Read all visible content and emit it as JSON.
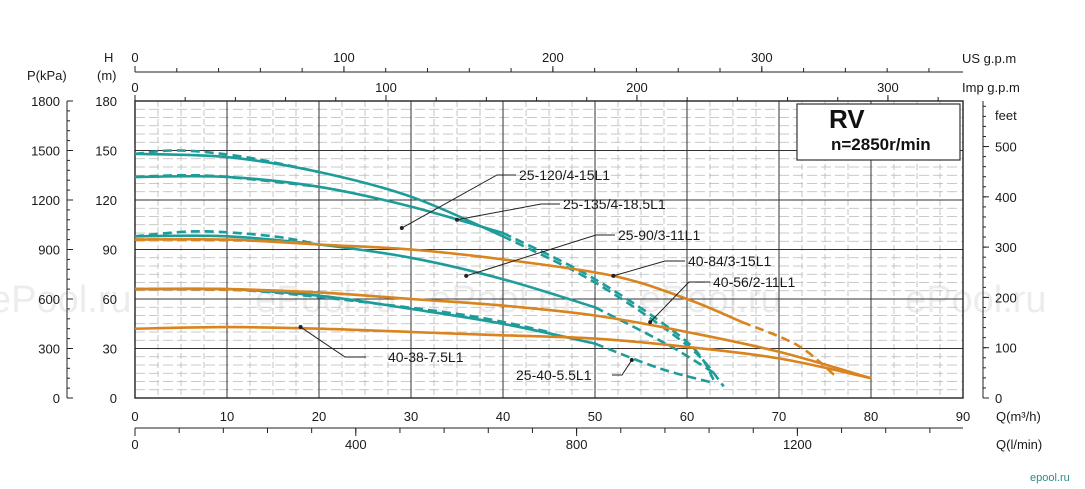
{
  "chart_data": {
    "type": "line",
    "model": "RV",
    "speed": "n=2850r/min",
    "x_label": "Q(m³/h)",
    "x_ticks": [
      0,
      10,
      20,
      30,
      40,
      50,
      60,
      70,
      80,
      90
    ],
    "xlim": [
      0,
      90
    ],
    "y_label": "H (m)",
    "y_ticks": [
      0,
      30,
      60,
      90,
      120,
      150,
      180
    ],
    "ylim": [
      0,
      180
    ],
    "p_label": "P(kPa)",
    "p_ticks": [
      0,
      300,
      600,
      900,
      1200,
      1500,
      1800
    ],
    "feet_label": "feet",
    "feet_ticks": [
      0,
      100,
      200,
      300,
      400,
      500
    ],
    "us_label": "US g.p.m",
    "us_ticks": [
      0,
      100,
      200,
      300
    ],
    "imp_label": "Imp g.p.m",
    "imp_ticks": [
      0,
      100,
      200,
      300
    ],
    "lmin_label": "Q(l/min)",
    "lmin_ticks": [
      0,
      400,
      800,
      1200
    ],
    "watermark": "ePool.ru",
    "brand": "epool.ru",
    "series": [
      {
        "name": "25-120/4-15L1",
        "color": "#1e9c9a",
        "solid": [
          [
            0,
            134
          ],
          [
            10,
            134
          ],
          [
            20,
            128
          ],
          [
            30,
            116
          ],
          [
            40,
            100
          ]
        ],
        "dashed": [
          [
            0,
            134
          ],
          [
            5,
            135
          ],
          [
            10,
            134
          ],
          [
            20,
            128
          ]
        ],
        "tail": [
          [
            40,
            100
          ],
          [
            50,
            72
          ],
          [
            60,
            34
          ],
          [
            63,
            10
          ]
        ]
      },
      {
        "name": "25-135/4-18.5L1",
        "color": "#1e9c9a",
        "solid": [
          [
            0,
            148
          ],
          [
            10,
            146
          ],
          [
            20,
            137
          ],
          [
            30,
            122
          ],
          [
            40,
            98
          ]
        ],
        "dashed": [
          [
            0,
            148
          ],
          [
            5,
            150
          ],
          [
            12,
            146
          ],
          [
            20,
            137
          ]
        ],
        "tail": [
          [
            40,
            98
          ],
          [
            50,
            70
          ],
          [
            60,
            32
          ],
          [
            64,
            7
          ]
        ]
      },
      {
        "name": "25-90/3-11L1",
        "color": "#1e9c9a",
        "solid": [
          [
            0,
            98
          ],
          [
            10,
            98
          ],
          [
            20,
            93
          ],
          [
            30,
            85
          ],
          [
            40,
            72
          ],
          [
            50,
            55
          ]
        ],
        "dashed": [
          [
            0,
            98
          ],
          [
            7,
            101
          ],
          [
            15,
            98
          ],
          [
            20,
            93
          ]
        ],
        "tail": [
          [
            50,
            55
          ],
          [
            58,
            32
          ],
          [
            63,
            15
          ]
        ]
      },
      {
        "name": "25-40-5.5L1",
        "color": "#1e9c9a",
        "solid": [
          [
            0,
            66
          ],
          [
            10,
            66
          ],
          [
            20,
            62
          ],
          [
            30,
            54
          ],
          [
            40,
            45
          ],
          [
            50,
            33
          ]
        ],
        "dashed": [
          [
            0,
            66
          ],
          [
            5,
            66
          ],
          [
            15,
            64
          ],
          [
            35,
            51
          ],
          [
            45,
            40
          ]
        ],
        "tail": [
          [
            50,
            33
          ],
          [
            57,
            18
          ],
          [
            63,
            9
          ]
        ]
      },
      {
        "name": "40-84/3-15L1",
        "color": "#d9841e",
        "solid": [
          [
            0,
            96
          ],
          [
            10,
            96
          ],
          [
            20,
            93
          ],
          [
            30,
            90
          ],
          [
            40,
            84
          ],
          [
            52,
            74
          ],
          [
            60,
            60
          ],
          [
            66,
            46
          ]
        ],
        "dashed": [
          [
            0,
            96
          ],
          [
            5,
            96
          ],
          [
            15,
            95
          ],
          [
            20,
            93
          ]
        ],
        "tail": [
          [
            66,
            46
          ],
          [
            72,
            32
          ],
          [
            76,
            14
          ]
        ]
      },
      {
        "name": "40-56/2-11L1",
        "color": "#d9841e",
        "solid": [
          [
            0,
            66
          ],
          [
            10,
            66
          ],
          [
            20,
            64
          ],
          [
            30,
            60
          ],
          [
            40,
            56
          ],
          [
            50,
            50
          ],
          [
            60,
            40
          ],
          [
            70,
            28
          ],
          [
            80,
            12
          ]
        ],
        "dashed": [
          [
            0,
            66
          ],
          [
            5,
            66
          ],
          [
            15,
            65
          ],
          [
            20,
            64
          ]
        ],
        "tail": []
      },
      {
        "name": "40-38-7.5L1",
        "color": "#d9841e",
        "solid": [
          [
            0,
            42
          ],
          [
            10,
            43
          ],
          [
            20,
            42
          ],
          [
            30,
            40
          ],
          [
            40,
            38
          ],
          [
            50,
            36
          ],
          [
            60,
            31
          ],
          [
            70,
            24
          ],
          [
            80,
            12
          ]
        ],
        "dashed": [],
        "tail": []
      }
    ]
  }
}
